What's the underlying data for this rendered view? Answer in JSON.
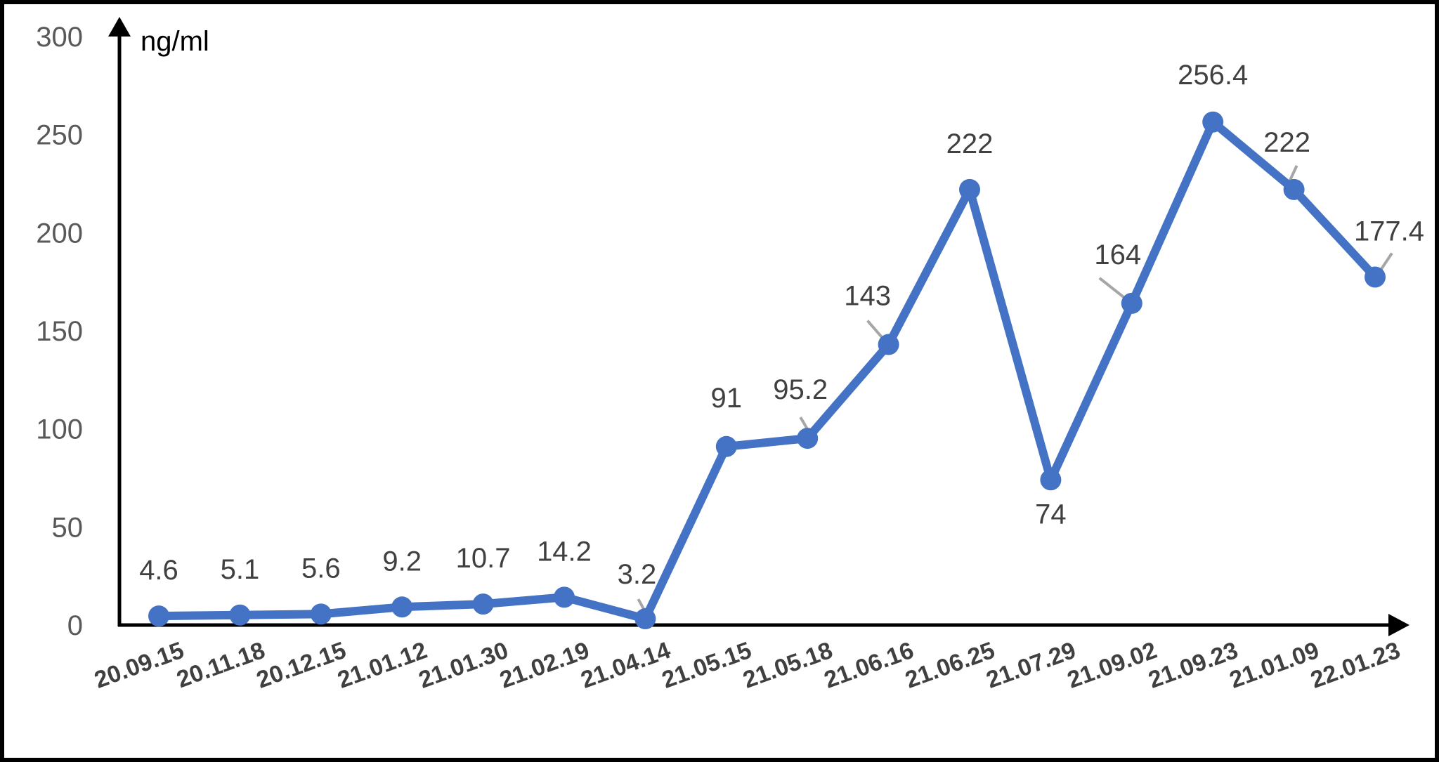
{
  "chart_data": {
    "type": "line",
    "title": "",
    "xlabel": "",
    "ylabel": "ng/ml",
    "ylim": [
      0,
      300
    ],
    "yticks": [
      0,
      50,
      100,
      150,
      200,
      250,
      300
    ],
    "grid": false,
    "legend": "none",
    "categories": [
      "20.09.15",
      "20.11.18",
      "20.12.15",
      "21.01.12",
      "21.01.30",
      "21.02.19",
      "21.04.14",
      "21.05.15",
      "21.05.18",
      "21.06.16",
      "21.06.25",
      "21.07.29",
      "21.09.02",
      "21.09.23",
      "21.01.09",
      "22.01.23"
    ],
    "series": [
      {
        "values": [
          4.6,
          5.1,
          5.6,
          9.2,
          10.7,
          14.2,
          3.2,
          91,
          95.2,
          143,
          222,
          74,
          164,
          256.4,
          222,
          177.4
        ],
        "labels": [
          "4.6",
          "5.1",
          "5.6",
          "9.2",
          "10.7",
          "14.2",
          "3.2",
          "91",
          "95.2",
          "143",
          "222",
          "74",
          "164",
          "256.4",
          "222",
          "177.4"
        ],
        "color": "#4472C4"
      }
    ]
  }
}
